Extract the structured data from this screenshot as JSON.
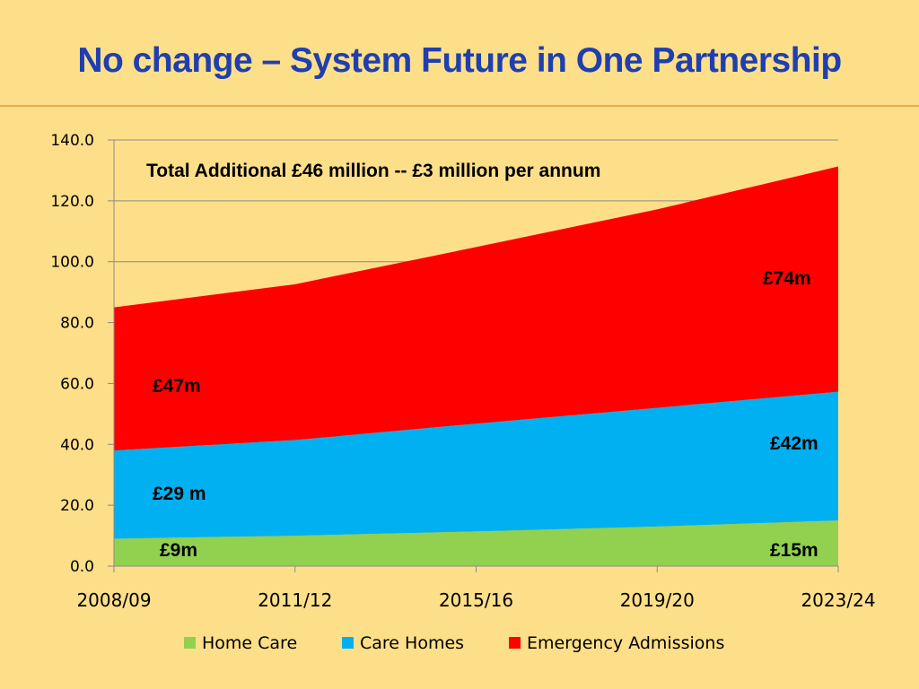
{
  "slide": {
    "title": "No change – System Future in One Partnership"
  },
  "colors": {
    "background": "#fddf8a",
    "title": "#1f3fb0",
    "home_care": "#92d050",
    "care_homes": "#00b0f0",
    "emergency_admissions": "#ff0000"
  },
  "chart_data": {
    "type": "area",
    "stacked": true,
    "title": "",
    "xlabel": "",
    "ylabel": "",
    "categories": [
      "2008/09",
      "2011/12",
      "2015/16",
      "2019/20",
      "2023/24"
    ],
    "series": [
      {
        "name": "Home Care",
        "values": [
          9,
          10,
          11.4,
          13,
          15
        ]
      },
      {
        "name": "Care Homes",
        "values": [
          29,
          31.4,
          35.4,
          39,
          42.3
        ]
      },
      {
        "name": "Emergency Admissions",
        "values": [
          47,
          51.2,
          58,
          65.2,
          74
        ]
      }
    ],
    "ylim": [
      0,
      140
    ],
    "yticks": [
      "0.0",
      "20.0",
      "40.0",
      "60.0",
      "80.0",
      "100.0",
      "120.0",
      "140.0"
    ],
    "grid": true,
    "legend_position": "bottom",
    "annotations": {
      "total": "Total Additional £46 million -- £3 million per annum",
      "emergency_start": "£47m",
      "emergency_end": "£74m",
      "care_homes_start": "£29 m",
      "care_homes_end": "£42m",
      "home_care_start": "£9m",
      "home_care_end": "£15m"
    }
  }
}
